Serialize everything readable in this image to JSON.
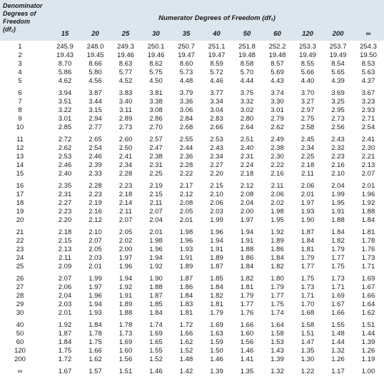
{
  "table": {
    "row_header": [
      "Denominator",
      "Degrees of",
      "Freedom",
      "(df₂)"
    ],
    "title": "Numerator Degrees of Freedom (df₁)",
    "columns": [
      "15",
      "20",
      "25",
      "30",
      "35",
      "40",
      "50",
      "60",
      "120",
      "200",
      "∞"
    ],
    "rows": [
      [
        "1",
        "245.9",
        "248.0",
        "249.3",
        "250.1",
        "250.7",
        "251.1",
        "251.8",
        "252.2",
        "253.3",
        "253.7",
        "254.3"
      ],
      [
        "2",
        "19.43",
        "19.45",
        "19.46",
        "19.46",
        "19.47",
        "19.47",
        "19.48",
        "19.48",
        "19.49",
        "19.49",
        "19.50"
      ],
      [
        "3",
        "8.70",
        "8.66",
        "8.63",
        "8.62",
        "8.60",
        "8.59",
        "8.58",
        "8.57",
        "8.55",
        "8.54",
        "8.53"
      ],
      [
        "4",
        "5.86",
        "5.80",
        "5.77",
        "5.75",
        "5.73",
        "5.72",
        "5.70",
        "5.69",
        "5.66",
        "5.65",
        "5.63"
      ],
      [
        "5",
        "4.62",
        "4.56",
        "4.52",
        "4.50",
        "4.48",
        "4.46",
        "4.44",
        "4.43",
        "4.40",
        "4.39",
        "4.37"
      ],
      [
        "6",
        "3.94",
        "3.87",
        "3.83",
        "3.81",
        "3.79",
        "3.77",
        "3.75",
        "3.74",
        "3.70",
        "3.69",
        "3.67"
      ],
      [
        "7",
        "3.51",
        "3.44",
        "3.40",
        "3.38",
        "3.36",
        "3.34",
        "3.32",
        "3.30",
        "3.27",
        "3.25",
        "3.23"
      ],
      [
        "8",
        "3.22",
        "3.15",
        "3.11",
        "3.08",
        "3.06",
        "3.04",
        "3.02",
        "3.01",
        "2.97",
        "2.95",
        "2.93"
      ],
      [
        "9",
        "3.01",
        "2.94",
        "2.89",
        "2.86",
        "2.84",
        "2.83",
        "2.80",
        "2.79",
        "2.75",
        "2.73",
        "2.71"
      ],
      [
        "10",
        "2.85",
        "2.77",
        "2.73",
        "2.70",
        "2.68",
        "2.66",
        "2.64",
        "2.62",
        "2.58",
        "2.56",
        "2.54"
      ],
      [
        "11",
        "2.72",
        "2.65",
        "2.60",
        "2.57",
        "2.55",
        "2.53",
        "2.51",
        "2.49",
        "2.45",
        "2.43",
        "2.41"
      ],
      [
        "12",
        "2.62",
        "2.54",
        "2.50",
        "2.47",
        "2.44",
        "2.43",
        "2.40",
        "2.38",
        "2.34",
        "2.32",
        "2.30"
      ],
      [
        "13",
        "2.53",
        "2.46",
        "2.41",
        "2.38",
        "2.36",
        "2.34",
        "2.31",
        "2.30",
        "2.25",
        "2.23",
        "2.21"
      ],
      [
        "14",
        "2.46",
        "2.39",
        "2.34",
        "2.31",
        "2.28",
        "2.27",
        "2.24",
        "2.22",
        "2.18",
        "2.16",
        "2.13"
      ],
      [
        "15",
        "2.40",
        "2.33",
        "2.28",
        "2.25",
        "2.22",
        "2.20",
        "2.18",
        "2.16",
        "2.11",
        "2.10",
        "2.07"
      ],
      [
        "16",
        "2.35",
        "2.28",
        "2.23",
        "2.19",
        "2.17",
        "2.15",
        "2.12",
        "2.11",
        "2.06",
        "2.04",
        "2.01"
      ],
      [
        "17",
        "2.31",
        "2.23",
        "2.18",
        "2.15",
        "2.12",
        "2.10",
        "2.08",
        "2.06",
        "2.01",
        "1.99",
        "1.96"
      ],
      [
        "18",
        "2.27",
        "2.19",
        "2.14",
        "2.11",
        "2.08",
        "2.06",
        "2.04",
        "2.02",
        "1.97",
        "1.95",
        "1.92"
      ],
      [
        "19",
        "2.23",
        "2.16",
        "2.11",
        "2.07",
        "2.05",
        "2.03",
        "2.00",
        "1.98",
        "1.93",
        "1.91",
        "1.88"
      ],
      [
        "20",
        "2.20",
        "2.12",
        "2.07",
        "2.04",
        "2.01",
        "1.99",
        "1.97",
        "1.95",
        "1.90",
        "1.88",
        "1.84"
      ],
      [
        "21",
        "2.18",
        "2.10",
        "2.05",
        "2.01",
        "1.98",
        "1.96",
        "1.94",
        "1.92",
        "1.87",
        "1.84",
        "1.81"
      ],
      [
        "22",
        "2.15",
        "2.07",
        "2.02",
        "1.98",
        "1.96",
        "1.94",
        "1.91",
        "1.89",
        "1.84",
        "1.82",
        "1.78"
      ],
      [
        "23",
        "2.13",
        "2.05",
        "2.00",
        "1.96",
        "1.93",
        "1.91",
        "1.88",
        "1.86",
        "1.81",
        "1.79",
        "1.76"
      ],
      [
        "24",
        "2.11",
        "2.03",
        "1.97",
        "1.94",
        "1.91",
        "1.89",
        "1.86",
        "1.84",
        "1.79",
        "1.77",
        "1.73"
      ],
      [
        "25",
        "2.09",
        "2.01",
        "1.96",
        "1.92",
        "1.89",
        "1.87",
        "1.84",
        "1.82",
        "1.77",
        "1.75",
        "1.71"
      ],
      [
        "26",
        "2.07",
        "1.99",
        "1.94",
        "1.90",
        "1.87",
        "1.85",
        "1.82",
        "1.80",
        "1.75",
        "1.73",
        "1.69"
      ],
      [
        "27",
        "2.06",
        "1.97",
        "1.92",
        "1.88",
        "1.86",
        "1.84",
        "1.81",
        "1.79",
        "1.73",
        "1.71",
        "1.67"
      ],
      [
        "28",
        "2.04",
        "1.96",
        "1.91",
        "1.87",
        "1.84",
        "1.82",
        "1.79",
        "1.77",
        "1.71",
        "1.69",
        "1.66"
      ],
      [
        "29",
        "2.03",
        "1.94",
        "1.89",
        "1.85",
        "1.83",
        "1.81",
        "1.77",
        "1.75",
        "1.70",
        "1.67",
        "1.64"
      ],
      [
        "30",
        "2.01",
        "1.93",
        "1.88",
        "1.84",
        "1.81",
        "1.79",
        "1.76",
        "1.74",
        "1.68",
        "1.66",
        "1.62"
      ],
      [
        "40",
        "1.92",
        "1.84",
        "1.78",
        "1.74",
        "1.72",
        "1.69",
        "1.66",
        "1.64",
        "1.58",
        "1.55",
        "1.51"
      ],
      [
        "50",
        "1.87",
        "1.78",
        "1.73",
        "1.69",
        "1.66",
        "1.63",
        "1.60",
        "1.58",
        "1.51",
        "1.48",
        "1.44"
      ],
      [
        "60",
        "1.84",
        "1.75",
        "1.69",
        "1.65",
        "1.62",
        "1.59",
        "1.56",
        "1.53",
        "1.47",
        "1.44",
        "1.39"
      ],
      [
        "120",
        "1.75",
        "1.66",
        "1.60",
        "1.55",
        "1.52",
        "1.50",
        "1.46",
        "1.43",
        "1.35",
        "1.32",
        "1.26"
      ],
      [
        "200",
        "1.72",
        "1.62",
        "1.56",
        "1.52",
        "1.48",
        "1.46",
        "1.41",
        "1.39",
        "1.30",
        "1.26",
        "1.19"
      ],
      [
        "∞",
        "1.67",
        "1.57",
        "1.51",
        "1.46",
        "1.42",
        "1.39",
        "1.35",
        "1.32",
        "1.22",
        "1.17",
        "1.00"
      ]
    ]
  }
}
